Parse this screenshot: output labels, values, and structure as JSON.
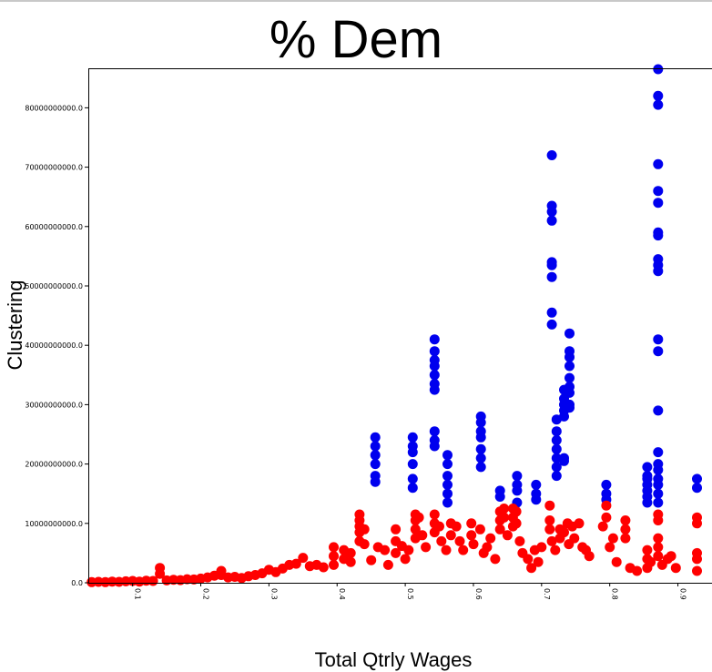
{
  "chart_data": {
    "type": "scatter",
    "title": "% Dem",
    "xlabel": "Total Qtrly Wages",
    "ylabel": "Clustering",
    "xlim": [
      0.035,
      0.93
    ],
    "ylim": [
      0,
      86500000000
    ],
    "x_ticks": [
      "0.1",
      "0.2",
      "0.3",
      "0.4",
      "0.5",
      "0.6",
      "0.7",
      "0.8",
      "0.9"
    ],
    "x_tick_values": [
      0.1,
      0.2,
      0.3,
      0.4,
      0.5,
      0.6,
      0.7,
      0.8,
      0.9
    ],
    "y_ticks": [
      "0.0",
      "10000000000.0",
      "20000000000.0",
      "30000000000.0",
      "40000000000.0",
      "50000000000.0",
      "60000000000.0",
      "70000000000.0",
      "80000000000.0"
    ],
    "y_tick_values": [
      0,
      10000000000,
      20000000000,
      30000000000,
      40000000000,
      50000000000,
      60000000000,
      70000000000,
      80000000000
    ],
    "grid": false,
    "colors": {
      "series_blue": "#0000ee",
      "series_red": "#ff0000",
      "axis": "#000000"
    },
    "series": [
      {
        "color": "blue",
        "points": [
          [
            0.456,
            24500000000
          ],
          [
            0.456,
            23000000000
          ],
          [
            0.456,
            21500000000
          ],
          [
            0.456,
            20000000000
          ],
          [
            0.456,
            18000000000
          ],
          [
            0.456,
            17000000000
          ],
          [
            0.511,
            24500000000
          ],
          [
            0.511,
            23000000000
          ],
          [
            0.511,
            22000000000
          ],
          [
            0.511,
            20000000000
          ],
          [
            0.511,
            17500000000
          ],
          [
            0.511,
            16000000000
          ],
          [
            0.543,
            41000000000
          ],
          [
            0.543,
            39000000000
          ],
          [
            0.543,
            37500000000
          ],
          [
            0.543,
            36500000000
          ],
          [
            0.543,
            35000000000
          ],
          [
            0.543,
            33500000000
          ],
          [
            0.543,
            32500000000
          ],
          [
            0.543,
            25500000000
          ],
          [
            0.543,
            24000000000
          ],
          [
            0.543,
            23000000000
          ],
          [
            0.562,
            21500000000
          ],
          [
            0.562,
            20000000000
          ],
          [
            0.562,
            18000000000
          ],
          [
            0.562,
            16500000000
          ],
          [
            0.562,
            15000000000
          ],
          [
            0.562,
            13500000000
          ],
          [
            0.611,
            28000000000
          ],
          [
            0.611,
            27000000000
          ],
          [
            0.611,
            25500000000
          ],
          [
            0.611,
            24500000000
          ],
          [
            0.611,
            22500000000
          ],
          [
            0.611,
            21000000000
          ],
          [
            0.611,
            19500000000
          ],
          [
            0.639,
            15500000000
          ],
          [
            0.639,
            14500000000
          ],
          [
            0.664,
            18000000000
          ],
          [
            0.664,
            16500000000
          ],
          [
            0.664,
            15500000000
          ],
          [
            0.664,
            13500000000
          ],
          [
            0.692,
            16500000000
          ],
          [
            0.692,
            15000000000
          ],
          [
            0.692,
            14000000000
          ],
          [
            0.715,
            72000000000
          ],
          [
            0.715,
            63500000000
          ],
          [
            0.715,
            62500000000
          ],
          [
            0.715,
            61000000000
          ],
          [
            0.715,
            54000000000
          ],
          [
            0.715,
            53500000000
          ],
          [
            0.715,
            51500000000
          ],
          [
            0.715,
            45500000000
          ],
          [
            0.715,
            43500000000
          ],
          [
            0.722,
            27500000000
          ],
          [
            0.722,
            25500000000
          ],
          [
            0.722,
            24000000000
          ],
          [
            0.722,
            22500000000
          ],
          [
            0.722,
            21000000000
          ],
          [
            0.722,
            19500000000
          ],
          [
            0.722,
            18000000000
          ],
          [
            0.733,
            32500000000
          ],
          [
            0.733,
            31000000000
          ],
          [
            0.733,
            30000000000
          ],
          [
            0.733,
            29000000000
          ],
          [
            0.733,
            28000000000
          ],
          [
            0.733,
            21000000000
          ],
          [
            0.733,
            20500000000
          ],
          [
            0.741,
            42000000000
          ],
          [
            0.741,
            39000000000
          ],
          [
            0.741,
            38000000000
          ],
          [
            0.741,
            36500000000
          ],
          [
            0.741,
            34500000000
          ],
          [
            0.741,
            33000000000
          ],
          [
            0.741,
            32000000000
          ],
          [
            0.741,
            30000000000
          ],
          [
            0.741,
            29500000000
          ],
          [
            0.795,
            16500000000
          ],
          [
            0.795,
            15000000000
          ],
          [
            0.795,
            14000000000
          ],
          [
            0.855,
            19500000000
          ],
          [
            0.855,
            18000000000
          ],
          [
            0.855,
            17500000000
          ],
          [
            0.855,
            16500000000
          ],
          [
            0.855,
            15500000000
          ],
          [
            0.855,
            14500000000
          ],
          [
            0.855,
            13500000000
          ],
          [
            0.871,
            86500000000
          ],
          [
            0.871,
            82000000000
          ],
          [
            0.871,
            80500000000
          ],
          [
            0.871,
            70500000000
          ],
          [
            0.871,
            66000000000
          ],
          [
            0.871,
            64000000000
          ],
          [
            0.871,
            59000000000
          ],
          [
            0.871,
            58500000000
          ],
          [
            0.871,
            54500000000
          ],
          [
            0.871,
            53500000000
          ],
          [
            0.871,
            52500000000
          ],
          [
            0.871,
            41000000000
          ],
          [
            0.871,
            39000000000
          ],
          [
            0.871,
            29000000000
          ],
          [
            0.871,
            22000000000
          ],
          [
            0.871,
            20000000000
          ],
          [
            0.871,
            19000000000
          ],
          [
            0.871,
            17500000000
          ],
          [
            0.871,
            16500000000
          ],
          [
            0.871,
            15000000000
          ],
          [
            0.871,
            13500000000
          ],
          [
            0.928,
            17500000000
          ],
          [
            0.928,
            16000000000
          ]
        ]
      },
      {
        "color": "red",
        "points": [
          [
            0.04,
            100000000
          ],
          [
            0.05,
            150000000
          ],
          [
            0.06,
            100000000
          ],
          [
            0.07,
            200000000
          ],
          [
            0.08,
            150000000
          ],
          [
            0.09,
            250000000
          ],
          [
            0.1,
            300000000
          ],
          [
            0.11,
            200000000
          ],
          [
            0.12,
            350000000
          ],
          [
            0.13,
            300000000
          ],
          [
            0.14,
            2500000000
          ],
          [
            0.14,
            1500000000
          ],
          [
            0.15,
            400000000
          ],
          [
            0.16,
            500000000
          ],
          [
            0.17,
            450000000
          ],
          [
            0.18,
            600000000
          ],
          [
            0.19,
            550000000
          ],
          [
            0.2,
            700000000
          ],
          [
            0.21,
            900000000
          ],
          [
            0.22,
            1200000000
          ],
          [
            0.23,
            2000000000
          ],
          [
            0.23,
            1300000000
          ],
          [
            0.24,
            900000000
          ],
          [
            0.25,
            1000000000
          ],
          [
            0.26,
            800000000
          ],
          [
            0.27,
            1100000000
          ],
          [
            0.28,
            1300000000
          ],
          [
            0.29,
            1600000000
          ],
          [
            0.3,
            2200000000
          ],
          [
            0.31,
            1800000000
          ],
          [
            0.32,
            2400000000
          ],
          [
            0.33,
            3000000000
          ],
          [
            0.34,
            3200000000
          ],
          [
            0.35,
            4200000000
          ],
          [
            0.36,
            2800000000
          ],
          [
            0.37,
            3000000000
          ],
          [
            0.38,
            2600000000
          ],
          [
            0.395,
            6000000000
          ],
          [
            0.395,
            4500000000
          ],
          [
            0.395,
            3000000000
          ],
          [
            0.41,
            5500000000
          ],
          [
            0.41,
            4000000000
          ],
          [
            0.42,
            3500000000
          ],
          [
            0.42,
            5000000000
          ],
          [
            0.433,
            11500000000
          ],
          [
            0.433,
            10500000000
          ],
          [
            0.433,
            9500000000
          ],
          [
            0.433,
            8500000000
          ],
          [
            0.433,
            7000000000
          ],
          [
            0.44,
            9000000000
          ],
          [
            0.44,
            6500000000
          ],
          [
            0.45,
            3800000000
          ],
          [
            0.46,
            6000000000
          ],
          [
            0.47,
            5500000000
          ],
          [
            0.475,
            3000000000
          ],
          [
            0.486,
            9000000000
          ],
          [
            0.486,
            7000000000
          ],
          [
            0.486,
            5000000000
          ],
          [
            0.495,
            6200000000
          ],
          [
            0.5,
            4000000000
          ],
          [
            0.505,
            5500000000
          ],
          [
            0.515,
            11500000000
          ],
          [
            0.515,
            10500000000
          ],
          [
            0.515,
            9000000000
          ],
          [
            0.515,
            7500000000
          ],
          [
            0.52,
            11000000000
          ],
          [
            0.525,
            8000000000
          ],
          [
            0.53,
            6000000000
          ],
          [
            0.543,
            11500000000
          ],
          [
            0.543,
            10000000000
          ],
          [
            0.543,
            8500000000
          ],
          [
            0.55,
            9500000000
          ],
          [
            0.553,
            7000000000
          ],
          [
            0.56,
            5500000000
          ],
          [
            0.567,
            10000000000
          ],
          [
            0.567,
            8000000000
          ],
          [
            0.575,
            9500000000
          ],
          [
            0.58,
            7000000000
          ],
          [
            0.585,
            5500000000
          ],
          [
            0.597,
            10000000000
          ],
          [
            0.597,
            8000000000
          ],
          [
            0.6,
            6500000000
          ],
          [
            0.61,
            9000000000
          ],
          [
            0.615,
            5000000000
          ],
          [
            0.62,
            6000000000
          ],
          [
            0.625,
            7500000000
          ],
          [
            0.632,
            4000000000
          ],
          [
            0.639,
            12000000000
          ],
          [
            0.639,
            10500000000
          ],
          [
            0.639,
            9000000000
          ],
          [
            0.645,
            12500000000
          ],
          [
            0.645,
            11000000000
          ],
          [
            0.65,
            8000000000
          ],
          [
            0.658,
            12500000000
          ],
          [
            0.658,
            11000000000
          ],
          [
            0.658,
            9500000000
          ],
          [
            0.663,
            12000000000
          ],
          [
            0.663,
            10000000000
          ],
          [
            0.668,
            7000000000
          ],
          [
            0.672,
            5000000000
          ],
          [
            0.68,
            4000000000
          ],
          [
            0.685,
            2500000000
          ],
          [
            0.69,
            5500000000
          ],
          [
            0.695,
            3500000000
          ],
          [
            0.7,
            6000000000
          ],
          [
            0.712,
            13000000000
          ],
          [
            0.712,
            10500000000
          ],
          [
            0.712,
            9000000000
          ],
          [
            0.715,
            7000000000
          ],
          [
            0.72,
            5500000000
          ],
          [
            0.727,
            9000000000
          ],
          [
            0.727,
            7500000000
          ],
          [
            0.733,
            8500000000
          ],
          [
            0.738,
            10000000000
          ],
          [
            0.74,
            6500000000
          ],
          [
            0.745,
            9500000000
          ],
          [
            0.748,
            7500000000
          ],
          [
            0.755,
            10000000000
          ],
          [
            0.76,
            6000000000
          ],
          [
            0.765,
            5500000000
          ],
          [
            0.77,
            4500000000
          ],
          [
            0.79,
            9500000000
          ],
          [
            0.795,
            13000000000
          ],
          [
            0.795,
            11000000000
          ],
          [
            0.8,
            6000000000
          ],
          [
            0.805,
            7500000000
          ],
          [
            0.81,
            3500000000
          ],
          [
            0.823,
            10500000000
          ],
          [
            0.823,
            9000000000
          ],
          [
            0.823,
            7500000000
          ],
          [
            0.83,
            2500000000
          ],
          [
            0.84,
            2000000000
          ],
          [
            0.855,
            5500000000
          ],
          [
            0.855,
            4000000000
          ],
          [
            0.855,
            2500000000
          ],
          [
            0.86,
            3500000000
          ],
          [
            0.871,
            11500000000
          ],
          [
            0.871,
            10500000000
          ],
          [
            0.871,
            7500000000
          ],
          [
            0.871,
            6000000000
          ],
          [
            0.871,
            4500000000
          ],
          [
            0.877,
            3000000000
          ],
          [
            0.885,
            4000000000
          ],
          [
            0.89,
            4500000000
          ],
          [
            0.897,
            2500000000
          ],
          [
            0.928,
            11000000000
          ],
          [
            0.928,
            10000000000
          ],
          [
            0.928,
            5000000000
          ],
          [
            0.928,
            4000000000
          ],
          [
            0.928,
            2000000000
          ]
        ]
      }
    ]
  }
}
